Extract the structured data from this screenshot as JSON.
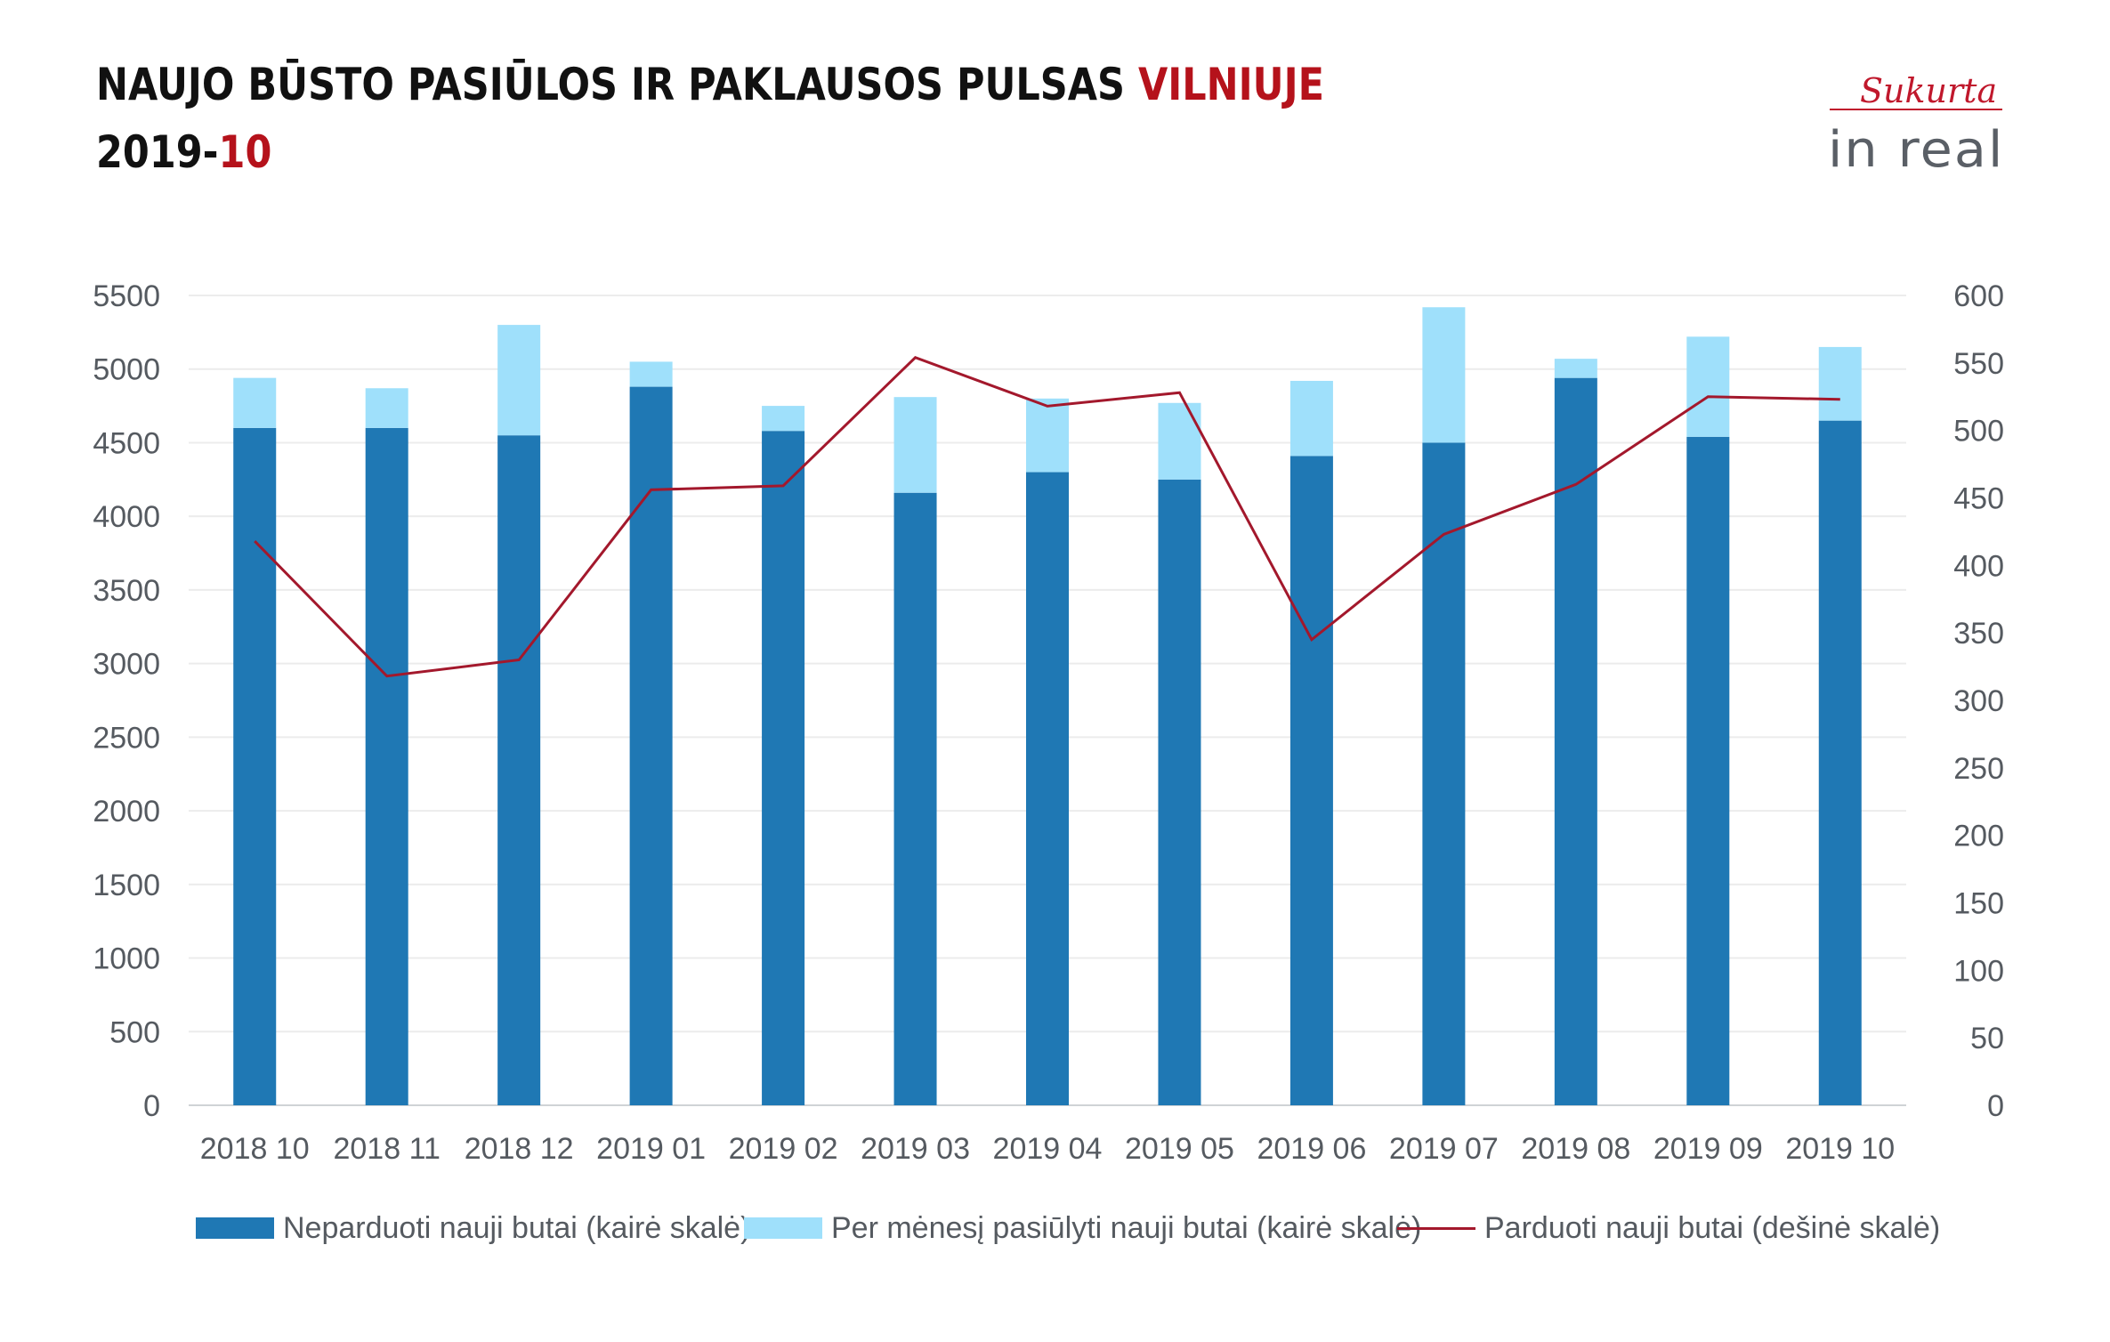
{
  "header": {
    "title_main": "NAUJO BŪSTO PASIŪLOS IR PAKLAUSOS PULSAS ",
    "title_highlight": "VILNIUJE",
    "subtitle_main": "2019-",
    "subtitle_highlight": "10"
  },
  "logo": {
    "script_text": "Sukurta",
    "brand_text": "in real"
  },
  "colors": {
    "unsold": "#1f78b4",
    "offered": "#9fe0fb",
    "sold": "#a3182c",
    "accent": "#b5121b"
  },
  "chart_data": {
    "type": "bar",
    "stacked": true,
    "categories": [
      "2018 10",
      "2018 11",
      "2018 12",
      "2019 01",
      "2019 02",
      "2019 03",
      "2019 04",
      "2019 05",
      "2019 06",
      "2019 07",
      "2019 08",
      "2019 09",
      "2019 10"
    ],
    "series": [
      {
        "name": "Neparduoti nauji butai (kairė skalė)",
        "type": "bar",
        "axis": "left",
        "values": [
          4600,
          4600,
          4550,
          4880,
          4580,
          4160,
          4300,
          4250,
          4410,
          4500,
          4940,
          4540,
          4650
        ]
      },
      {
        "name": "Per mėnesį pasiūlyti nauji butai (kairė skalė)",
        "type": "bar",
        "axis": "left",
        "values": [
          340,
          270,
          750,
          170,
          170,
          650,
          500,
          520,
          510,
          920,
          130,
          680,
          500
        ]
      },
      {
        "name": "Parduoti nauji butai (dešinė skalė)",
        "type": "line",
        "axis": "right",
        "values": [
          418,
          318,
          330,
          456,
          459,
          554,
          518,
          528,
          345,
          423,
          460,
          525,
          523
        ]
      }
    ],
    "left_axis": {
      "min": 0,
      "max": 5500,
      "step": 500
    },
    "right_axis": {
      "min": 0,
      "max": 600,
      "step": 50
    },
    "ticks_left": [
      "0",
      "500",
      "1000",
      "1500",
      "2000",
      "2500",
      "3000",
      "3500",
      "4000",
      "4500",
      "5000",
      "5500"
    ],
    "ticks_right": [
      "0",
      "50",
      "100",
      "150",
      "200",
      "250",
      "300",
      "350",
      "400",
      "450",
      "500",
      "550",
      "600"
    ],
    "grid": true,
    "legend_position": "bottom"
  }
}
